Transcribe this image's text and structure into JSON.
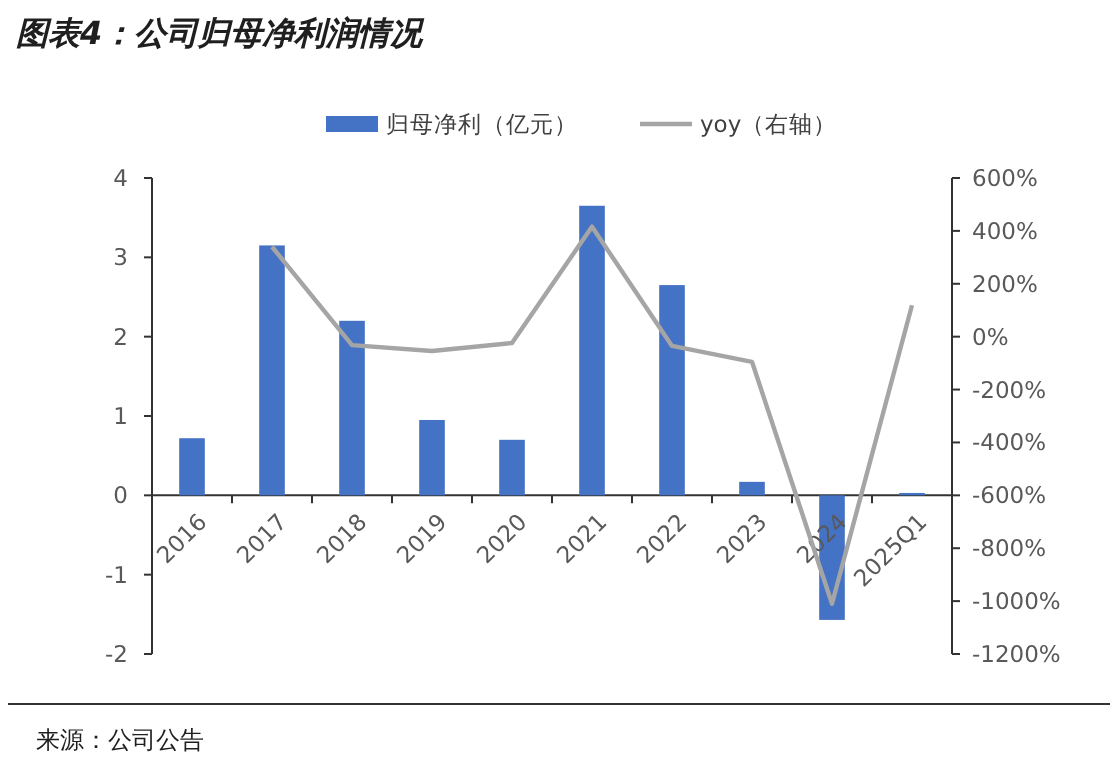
{
  "chart_data": {
    "type": "bar",
    "title": "图表4：公司归母净利润情况",
    "categories": [
      "2016",
      "2017",
      "2018",
      "2019",
      "2020",
      "2021",
      "2022",
      "2023",
      "2024",
      "2025Q1"
    ],
    "series": [
      {
        "name": "归母净利（亿元）",
        "color": "#4472c4",
        "values": [
          0.72,
          3.15,
          2.2,
          0.95,
          0.7,
          3.65,
          2.65,
          0.17,
          -1.57,
          0.03
        ]
      },
      {
        "name": "yoy（右轴）",
        "type": "line",
        "axis": "y2",
        "color": "#a5a5a5",
        "values": [
          null,
          340,
          -32,
          -54,
          -24,
          416,
          -35,
          -95,
          -1010,
          119
        ]
      }
    ],
    "ylim": [
      -2,
      4
    ],
    "yticks": [
      -2,
      -1,
      0,
      1,
      2,
      3,
      4
    ],
    "y2lim": [
      -1200,
      600
    ],
    "y2ticks": [
      {
        "value": -1200,
        "label": "-1200%"
      },
      {
        "value": -1000,
        "label": "-1000%"
      },
      {
        "value": -800,
        "label": "-800%"
      },
      {
        "value": -600,
        "label": "-600%"
      },
      {
        "value": -400,
        "label": "-400%"
      },
      {
        "value": -200,
        "label": "-200%"
      },
      {
        "value": 0,
        "label": "0%"
      },
      {
        "value": 200,
        "label": "200%"
      },
      {
        "value": 400,
        "label": "400%"
      },
      {
        "value": 600,
        "label": "600%"
      }
    ],
    "legend": "top",
    "grid": false,
    "marker": "none",
    "line_style": "solid",
    "annotations": [
      "来源：公司公告"
    ]
  }
}
